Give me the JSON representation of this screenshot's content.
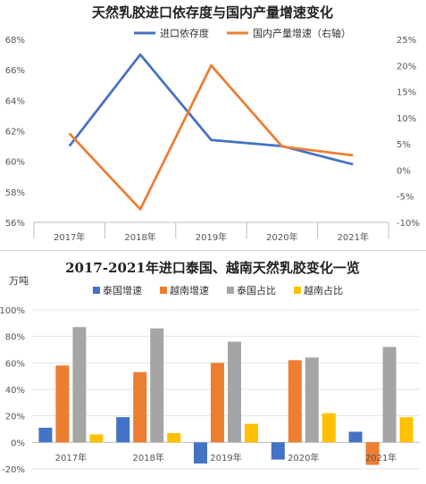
{
  "chart_data": [
    {
      "type": "line",
      "title": "天然乳胶进口依存度与国内产量增速变化",
      "categories": [
        "2017年",
        "2018年",
        "2019年",
        "2020年",
        "2021年"
      ],
      "series": [
        {
          "name": "进口依存度",
          "axis": "left",
          "color": "#4472C4",
          "values": [
            61.0,
            67.0,
            61.4,
            61.0,
            59.8
          ]
        },
        {
          "name": "国内产量增速（右轴）",
          "axis": "right",
          "color": "#ED7D31",
          "values": [
            7.0,
            -7.5,
            20.0,
            4.5,
            2.8
          ]
        }
      ],
      "y_left": {
        "min": 56,
        "max": 68,
        "step": 2,
        "ticks": [
          "56%",
          "58%",
          "60%",
          "62%",
          "64%",
          "66%",
          "68%"
        ]
      },
      "y_right": {
        "min": -10,
        "max": 25,
        "step": 5,
        "ticks": [
          "-10%",
          "-5%",
          "0%",
          "5%",
          "10%",
          "15%",
          "20%",
          "25%"
        ]
      },
      "legend_position": "top",
      "grid": false
    },
    {
      "type": "bar",
      "title": "2017-2021年进口泰国、越南天然乳胶变化一览",
      "unit_label": "万吨",
      "categories": [
        "2017年",
        "2018年",
        "2019年",
        "2020年",
        "2021年"
      ],
      "series": [
        {
          "name": "泰国增速",
          "color": "#4472C4",
          "values": [
            11,
            19,
            -16,
            -13,
            8
          ]
        },
        {
          "name": "越南增速",
          "color": "#ED7D31",
          "values": [
            58,
            53,
            60,
            62,
            -17
          ]
        },
        {
          "name": "泰国占比",
          "color": "#A5A5A5",
          "values": [
            87,
            86,
            76,
            64,
            72
          ]
        },
        {
          "name": "越南占比",
          "color": "#FFC000",
          "values": [
            6,
            7,
            14,
            22,
            19
          ]
        }
      ],
      "y_axis": {
        "min": -20,
        "max": 100,
        "step": 20,
        "ticks": [
          "-20%",
          "0%",
          "20%",
          "40%",
          "60%",
          "80%",
          "100%"
        ]
      },
      "legend_position": "top",
      "grid": true
    }
  ]
}
